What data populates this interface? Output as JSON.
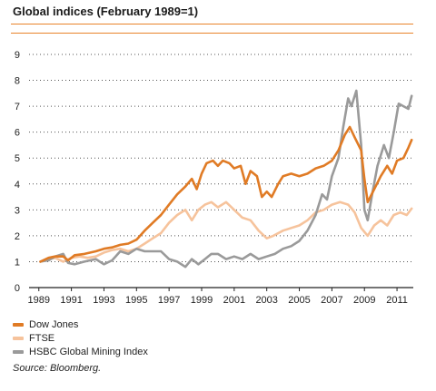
{
  "chart_data": {
    "type": "line",
    "title": "Global indices (February 1989=1)",
    "xlabel": "",
    "ylabel": "",
    "xlim": [
      1988.4,
      2012.0
    ],
    "ylim": [
      0,
      9
    ],
    "y_ticks": [
      "0",
      "1",
      "2",
      "3",
      "4",
      "5",
      "6",
      "7",
      "8",
      "9"
    ],
    "x_ticks": [
      "1989",
      "1991",
      "1993",
      "1995",
      "1997",
      "1999",
      "2001",
      "2003",
      "2005",
      "2007",
      "2009",
      "2011"
    ],
    "grid": "horizontal dotted",
    "legend_position": "bottom-left",
    "series": [
      {
        "name": "Dow Jones",
        "color": "#e07b25",
        "points": [
          [
            1989.1,
            1.0
          ],
          [
            1989.6,
            1.15
          ],
          [
            1990.0,
            1.2
          ],
          [
            1990.5,
            1.2
          ],
          [
            1990.8,
            1.05
          ],
          [
            1991.2,
            1.25
          ],
          [
            1991.8,
            1.3
          ],
          [
            1992.5,
            1.4
          ],
          [
            1993.0,
            1.5
          ],
          [
            1993.5,
            1.55
          ],
          [
            1994.0,
            1.65
          ],
          [
            1994.5,
            1.7
          ],
          [
            1995.0,
            1.85
          ],
          [
            1995.5,
            2.2
          ],
          [
            1996.0,
            2.5
          ],
          [
            1996.5,
            2.8
          ],
          [
            1997.0,
            3.2
          ],
          [
            1997.5,
            3.6
          ],
          [
            1998.0,
            3.9
          ],
          [
            1998.4,
            4.2
          ],
          [
            1998.7,
            3.8
          ],
          [
            1999.0,
            4.4
          ],
          [
            1999.3,
            4.8
          ],
          [
            1999.7,
            4.9
          ],
          [
            2000.0,
            4.7
          ],
          [
            2000.3,
            4.9
          ],
          [
            2000.7,
            4.8
          ],
          [
            2001.0,
            4.6
          ],
          [
            2001.4,
            4.7
          ],
          [
            2001.7,
            4.0
          ],
          [
            2002.0,
            4.5
          ],
          [
            2002.4,
            4.3
          ],
          [
            2002.7,
            3.5
          ],
          [
            2003.0,
            3.7
          ],
          [
            2003.3,
            3.5
          ],
          [
            2003.7,
            4.0
          ],
          [
            2004.0,
            4.3
          ],
          [
            2004.5,
            4.4
          ],
          [
            2005.0,
            4.3
          ],
          [
            2005.5,
            4.4
          ],
          [
            2006.0,
            4.6
          ],
          [
            2006.5,
            4.7
          ],
          [
            2007.0,
            4.9
          ],
          [
            2007.4,
            5.3
          ],
          [
            2007.8,
            5.9
          ],
          [
            2008.1,
            6.2
          ],
          [
            2008.4,
            5.8
          ],
          [
            2008.8,
            5.3
          ],
          [
            2009.0,
            4.2
          ],
          [
            2009.2,
            3.3
          ],
          [
            2009.6,
            3.8
          ],
          [
            2010.0,
            4.3
          ],
          [
            2010.4,
            4.7
          ],
          [
            2010.7,
            4.4
          ],
          [
            2011.0,
            4.9
          ],
          [
            2011.4,
            5.0
          ],
          [
            2011.7,
            5.4
          ],
          [
            2011.9,
            5.7
          ]
        ]
      },
      {
        "name": "FTSE",
        "color": "#f6c39c",
        "points": [
          [
            1989.1,
            1.0
          ],
          [
            1989.6,
            1.1
          ],
          [
            1990.0,
            1.15
          ],
          [
            1990.5,
            1.0
          ],
          [
            1991.0,
            1.15
          ],
          [
            1991.5,
            1.2
          ],
          [
            1992.0,
            1.15
          ],
          [
            1992.5,
            1.2
          ],
          [
            1993.0,
            1.35
          ],
          [
            1993.5,
            1.45
          ],
          [
            1994.0,
            1.5
          ],
          [
            1994.5,
            1.4
          ],
          [
            1995.0,
            1.5
          ],
          [
            1995.5,
            1.7
          ],
          [
            1996.0,
            1.9
          ],
          [
            1996.5,
            2.1
          ],
          [
            1997.0,
            2.5
          ],
          [
            1997.5,
            2.8
          ],
          [
            1998.0,
            3.0
          ],
          [
            1998.4,
            2.6
          ],
          [
            1998.8,
            3.0
          ],
          [
            1999.2,
            3.2
          ],
          [
            1999.6,
            3.3
          ],
          [
            2000.0,
            3.1
          ],
          [
            2000.5,
            3.3
          ],
          [
            2001.0,
            3.0
          ],
          [
            2001.5,
            2.7
          ],
          [
            2002.0,
            2.6
          ],
          [
            2002.5,
            2.2
          ],
          [
            2003.0,
            1.9
          ],
          [
            2003.4,
            2.0
          ],
          [
            2004.0,
            2.2
          ],
          [
            2004.5,
            2.3
          ],
          [
            2005.0,
            2.4
          ],
          [
            2005.5,
            2.6
          ],
          [
            2006.0,
            2.9
          ],
          [
            2006.5,
            3.0
          ],
          [
            2007.0,
            3.2
          ],
          [
            2007.5,
            3.3
          ],
          [
            2008.0,
            3.2
          ],
          [
            2008.4,
            2.9
          ],
          [
            2008.8,
            2.3
          ],
          [
            2009.2,
            2.0
          ],
          [
            2009.6,
            2.4
          ],
          [
            2010.0,
            2.6
          ],
          [
            2010.4,
            2.4
          ],
          [
            2010.8,
            2.8
          ],
          [
            2011.2,
            2.9
          ],
          [
            2011.6,
            2.8
          ],
          [
            2011.9,
            3.05
          ]
        ]
      },
      {
        "name": "HSBC Global Mining Index",
        "color": "#9a9a9a",
        "points": [
          [
            1989.1,
            1.0
          ],
          [
            1989.6,
            1.05
          ],
          [
            1990.0,
            1.2
          ],
          [
            1990.5,
            1.3
          ],
          [
            1990.8,
            0.95
          ],
          [
            1991.2,
            0.9
          ],
          [
            1991.8,
            1.0
          ],
          [
            1992.5,
            1.1
          ],
          [
            1993.0,
            0.9
          ],
          [
            1993.5,
            1.05
          ],
          [
            1994.0,
            1.4
          ],
          [
            1994.5,
            1.3
          ],
          [
            1995.0,
            1.5
          ],
          [
            1995.5,
            1.4
          ],
          [
            1996.0,
            1.4
          ],
          [
            1996.5,
            1.4
          ],
          [
            1997.0,
            1.1
          ],
          [
            1997.5,
            1.0
          ],
          [
            1998.0,
            0.8
          ],
          [
            1998.4,
            1.1
          ],
          [
            1998.8,
            0.9
          ],
          [
            1999.2,
            1.1
          ],
          [
            1999.6,
            1.3
          ],
          [
            2000.0,
            1.3
          ],
          [
            2000.5,
            1.1
          ],
          [
            2001.0,
            1.2
          ],
          [
            2001.5,
            1.1
          ],
          [
            2002.0,
            1.3
          ],
          [
            2002.5,
            1.1
          ],
          [
            2003.0,
            1.2
          ],
          [
            2003.5,
            1.3
          ],
          [
            2004.0,
            1.5
          ],
          [
            2004.5,
            1.6
          ],
          [
            2005.0,
            1.8
          ],
          [
            2005.5,
            2.2
          ],
          [
            2006.0,
            2.8
          ],
          [
            2006.4,
            3.6
          ],
          [
            2006.7,
            3.4
          ],
          [
            2007.0,
            4.3
          ],
          [
            2007.4,
            5.0
          ],
          [
            2007.7,
            6.2
          ],
          [
            2008.0,
            7.3
          ],
          [
            2008.2,
            7.0
          ],
          [
            2008.5,
            7.6
          ],
          [
            2008.8,
            5.5
          ],
          [
            2009.0,
            3.0
          ],
          [
            2009.2,
            2.6
          ],
          [
            2009.5,
            3.7
          ],
          [
            2009.8,
            4.7
          ],
          [
            2010.2,
            5.5
          ],
          [
            2010.5,
            5.0
          ],
          [
            2010.8,
            6.0
          ],
          [
            2011.1,
            7.1
          ],
          [
            2011.4,
            7.0
          ],
          [
            2011.7,
            6.9
          ],
          [
            2011.9,
            7.4
          ]
        ]
      }
    ]
  },
  "source_text": "Source: Bloomberg."
}
